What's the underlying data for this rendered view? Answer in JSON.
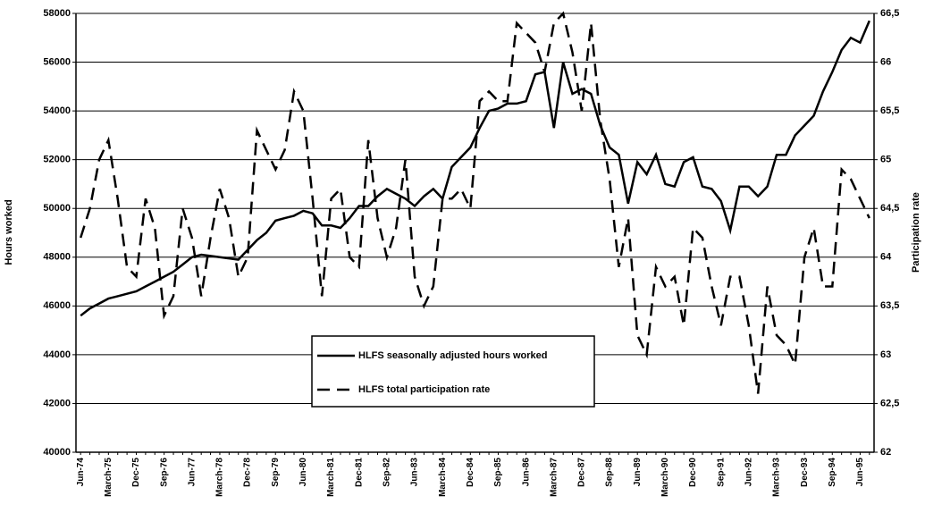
{
  "chart_data": {
    "type": "line",
    "categories": [
      "Jun-74",
      null,
      null,
      "March-75",
      null,
      null,
      "Dec-75",
      null,
      null,
      "Sep-76",
      null,
      null,
      "Jun-77",
      null,
      null,
      "March-78",
      null,
      null,
      "Dec-78",
      null,
      null,
      "Sep-79",
      null,
      null,
      "Jun-80",
      null,
      null,
      "March-81",
      null,
      null,
      "Dec-81",
      null,
      null,
      "Sep-82",
      null,
      null,
      "Jun-83",
      null,
      null,
      "March-84",
      null,
      null,
      "Dec-84",
      null,
      null,
      "Sep-85",
      null,
      null,
      "Jun-86",
      null,
      null,
      "March-87",
      null,
      null,
      "Dec-87",
      null,
      null,
      "Sep-88",
      null,
      null,
      "Jun-89",
      null,
      null,
      "March-90",
      null,
      null,
      "Dec-90",
      null,
      null,
      "Sep-91",
      null,
      null,
      "Jun-92",
      null,
      null,
      "March-93",
      null,
      null,
      "Dec-93",
      null,
      null,
      "Sep-94",
      null,
      null,
      "Jun-95",
      null
    ],
    "series": [
      {
        "name": "HLFS seasonally adjusted hours worked",
        "color": "#000000",
        "dash": false,
        "values": [
          45600,
          45900,
          46100,
          46300,
          46400,
          46500,
          46600,
          46800,
          47000,
          47200,
          47400,
          47700,
          48000,
          48100,
          48050,
          48000,
          47950,
          47900,
          48300,
          48700,
          49000,
          49500,
          49600,
          49700,
          49900,
          49800,
          49300,
          49300,
          49200,
          49600,
          50100,
          50100,
          50500,
          50800,
          50600,
          50400,
          50100,
          50500,
          50800,
          50400,
          51700,
          52100,
          52500,
          53300,
          54000,
          54100,
          54300,
          54300,
          54400,
          55500,
          55600,
          53300,
          56000,
          54700,
          54900,
          54700,
          53400,
          52500,
          52200,
          50200,
          51900,
          51400,
          52200,
          51000,
          50900,
          51900,
          52100,
          50900,
          50800,
          50300,
          49100,
          50900,
          50900,
          50500,
          50900,
          52200,
          52200,
          53000,
          53400,
          53800,
          54800,
          55600,
          56500,
          57000,
          56800,
          57700
        ]
      },
      {
        "name": "HLFS total participation rate",
        "color": "#000000",
        "dash": true,
        "axis": "y2",
        "values": [
          64.2,
          64.5,
          65.0,
          65.2,
          64.6,
          63.9,
          63.8,
          64.6,
          64.3,
          63.4,
          63.6,
          64.5,
          64.2,
          63.6,
          64.2,
          64.7,
          64.4,
          63.8,
          64.0,
          65.3,
          65.1,
          64.9,
          65.1,
          65.7,
          65.5,
          64.6,
          63.6,
          64.6,
          64.7,
          64.0,
          63.9,
          65.2,
          64.4,
          64.0,
          64.3,
          65.0,
          63.8,
          63.5,
          63.7,
          64.6,
          64.6,
          64.7,
          64.5,
          65.6,
          65.7,
          65.6,
          65.6,
          66.4,
          66.3,
          66.2,
          65.9,
          66.4,
          66.5,
          66.1,
          65.5,
          66.4,
          65.4,
          64.8,
          63.9,
          64.4,
          63.2,
          63.0,
          63.9,
          63.7,
          63.8,
          63.3,
          64.3,
          64.2,
          63.7,
          63.3,
          63.8,
          63.8,
          63.3,
          62.6,
          63.7,
          63.2,
          63.1,
          62.9,
          64.0,
          64.3,
          63.7,
          63.7,
          64.9,
          64.8,
          64.6,
          64.4
        ]
      }
    ],
    "y_label": "Hours worked",
    "y2_label": "Participation rate",
    "ylim": [
      40000,
      58000
    ],
    "yticks": [
      40000,
      42000,
      44000,
      46000,
      48000,
      50000,
      52000,
      54000,
      56000,
      58000
    ],
    "y2lim": [
      62,
      66.5
    ],
    "y2ticks": [
      62,
      {
        "value": 62.5,
        "label": "62,5"
      },
      63,
      {
        "value": 63.5,
        "label": "63,5"
      },
      64,
      {
        "value": 64.5,
        "label": "64,5"
      },
      65,
      {
        "value": 65.5,
        "label": "65,5"
      },
      66,
      {
        "value": 66.5,
        "label": "66,5"
      }
    ],
    "grid": true
  }
}
